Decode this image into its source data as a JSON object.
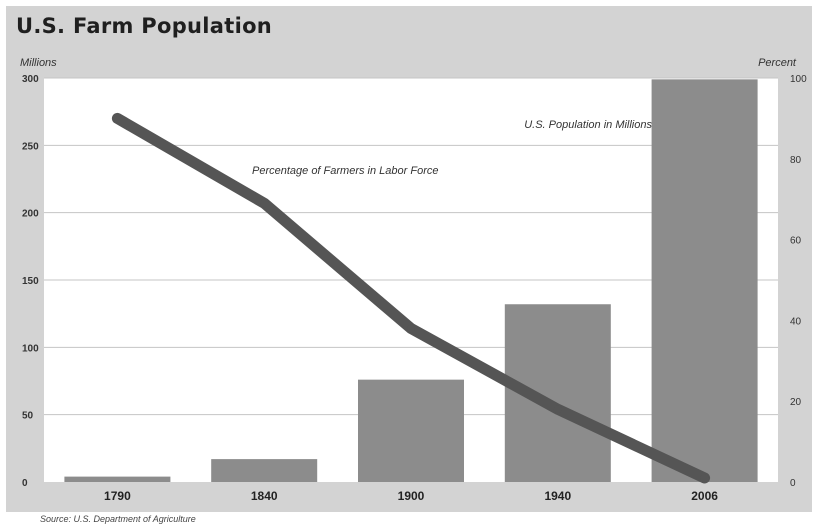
{
  "chart_title": "U.S. Farm Population",
  "source_note": "Source: U.S. Department of Agriculture",
  "colors": {
    "frame_bg": "#d3d3d3",
    "plot_bg": "#ffffff",
    "grid": "#c4c4c4",
    "bar": "#8c8c8c",
    "line": "#555555",
    "text": "#333333"
  },
  "chart_data": {
    "type": "bar",
    "title": "U.S. Farm Population",
    "xlabel": "",
    "ylabel": "Millions",
    "y2label": "Percent",
    "categories": [
      "1790",
      "1840",
      "1900",
      "1940",
      "2006"
    ],
    "grid": true,
    "ylim": [
      0,
      300
    ],
    "y2lim": [
      0,
      100
    ],
    "yticks": [
      "0",
      "50",
      "100",
      "150",
      "200",
      "250",
      "300"
    ],
    "y2ticks": [
      "0",
      "20",
      "40",
      "60",
      "80",
      "100"
    ],
    "series": [
      {
        "name": "U.S. Population in Millions",
        "kind": "bar",
        "axis": "left",
        "values": [
          4,
          17,
          76,
          132,
          299
        ]
      },
      {
        "name": "Percentage of Farmers in Labor Force",
        "kind": "line",
        "axis": "right",
        "values": [
          90,
          69,
          38,
          18,
          1
        ]
      }
    ]
  }
}
